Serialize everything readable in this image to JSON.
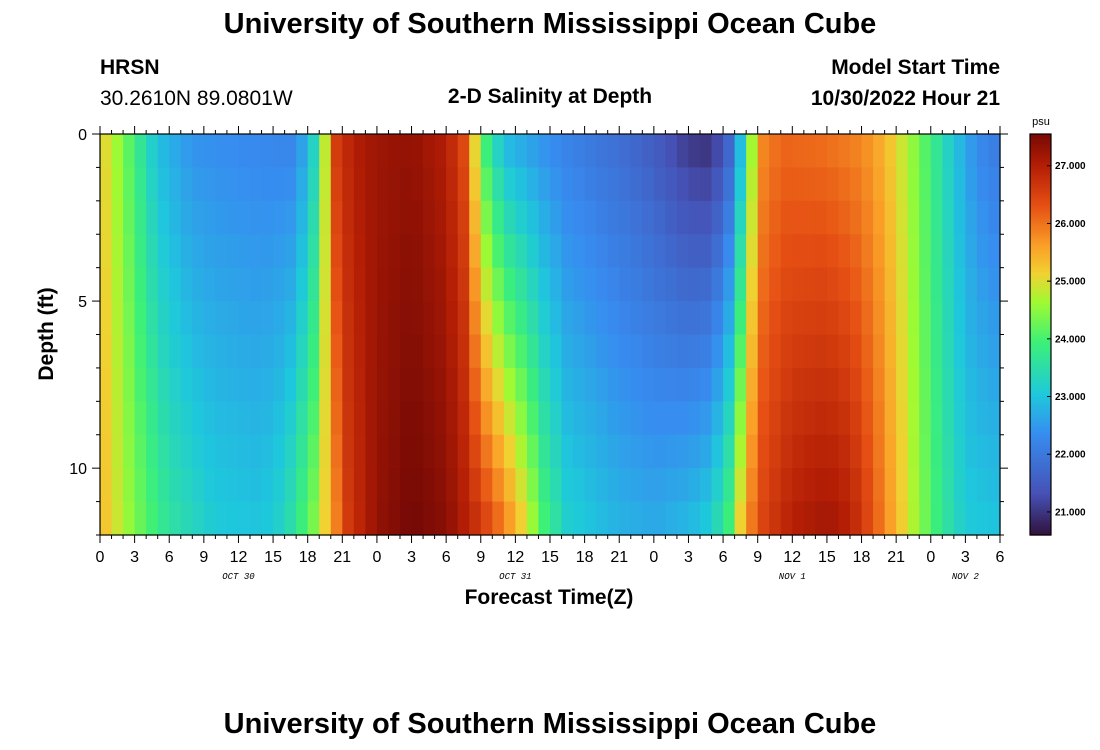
{
  "page": {
    "title": "University of Southern Mississippi Ocean Cube",
    "title_repeat": "University of Southern Mississippi Ocean Cube"
  },
  "header": {
    "station": "HRSN",
    "coords": "30.2610N  89.0801W",
    "plot_title": "2-D Salinity at Depth",
    "model_label": "Model Start Time",
    "model_time": "10/30/2022 Hour 21"
  },
  "chart_data": {
    "type": "heatmap",
    "title": "2-D Salinity at Depth",
    "xlabel": "Forecast Time(Z)",
    "ylabel": "Depth (ft)",
    "x_tick_labels": [
      "0",
      "3",
      "6",
      "9",
      "12",
      "15",
      "18",
      "21",
      "0",
      "3",
      "6",
      "9",
      "12",
      "15",
      "18",
      "21",
      "0",
      "3",
      "6",
      "9",
      "12",
      "15",
      "18",
      "21",
      "0",
      "3",
      "6"
    ],
    "x_hours": [
      0,
      3,
      6,
      9,
      12,
      15,
      18,
      21,
      24,
      27,
      30,
      33,
      36,
      39,
      42,
      45,
      48,
      51,
      54,
      57,
      60,
      63,
      66,
      69,
      72,
      75,
      78
    ],
    "date_labels": [
      {
        "text": "OCT 30",
        "hour": 12
      },
      {
        "text": "OCT 31",
        "hour": 36
      },
      {
        "text": "NOV 1",
        "hour": 60
      },
      {
        "text": "NOV 2",
        "hour": 75
      }
    ],
    "y_tick_labels": [
      "0",
      "5",
      "10"
    ],
    "y_ticks": [
      0,
      5,
      10
    ],
    "ylim": [
      0,
      12
    ],
    "xlim": [
      0,
      78
    ],
    "depth_levels": [
      0,
      1,
      2,
      3,
      4,
      5,
      6,
      7,
      8,
      9,
      10,
      11,
      12
    ],
    "salinity_keyframes_surface": [
      [
        0,
        25.2
      ],
      [
        1.5,
        24.6
      ],
      [
        3,
        23.9
      ],
      [
        5,
        22.9
      ],
      [
        8,
        22.4
      ],
      [
        12,
        22.3
      ],
      [
        17,
        22.2
      ],
      [
        18.5,
        23.2
      ],
      [
        19.5,
        24.8
      ],
      [
        20.5,
        26.6
      ],
      [
        22,
        27.0
      ],
      [
        24,
        27.2
      ],
      [
        27,
        27.3
      ],
      [
        30,
        27.0
      ],
      [
        31.5,
        26.4
      ],
      [
        32.5,
        25.0
      ],
      [
        33.5,
        23.8
      ],
      [
        35,
        22.8
      ],
      [
        40,
        22.2
      ],
      [
        45,
        21.8
      ],
      [
        48,
        21.5
      ],
      [
        51,
        21.0
      ],
      [
        53,
        20.9
      ],
      [
        54.5,
        21.6
      ],
      [
        55.5,
        22.8
      ],
      [
        56.5,
        24.6
      ],
      [
        57.5,
        25.8
      ],
      [
        59,
        26.1
      ],
      [
        63,
        26.0
      ],
      [
        66,
        25.8
      ],
      [
        68,
        25.4
      ],
      [
        70,
        24.7
      ],
      [
        72,
        23.9
      ],
      [
        74,
        23.0
      ],
      [
        76,
        22.3
      ],
      [
        78,
        22.0
      ]
    ],
    "salinity_keyframes_bottom": [
      [
        0,
        25.4
      ],
      [
        1.5,
        24.9
      ],
      [
        3,
        24.4
      ],
      [
        6,
        23.6
      ],
      [
        10,
        23.1
      ],
      [
        14,
        23.0
      ],
      [
        16,
        23.3
      ],
      [
        18.5,
        24.4
      ],
      [
        20,
        25.5
      ],
      [
        21.5,
        26.6
      ],
      [
        24,
        27.3
      ],
      [
        27,
        27.6
      ],
      [
        30,
        27.4
      ],
      [
        33,
        26.7
      ],
      [
        35,
        26.0
      ],
      [
        37,
        25.0
      ],
      [
        38.5,
        24.0
      ],
      [
        40.5,
        23.2
      ],
      [
        45,
        22.8
      ],
      [
        48,
        22.7
      ],
      [
        51,
        22.9
      ],
      [
        53,
        23.2
      ],
      [
        54.5,
        24.0
      ],
      [
        55.5,
        25.2
      ],
      [
        57,
        26.4
      ],
      [
        60,
        27.0
      ],
      [
        63,
        27.2
      ],
      [
        65,
        27.0
      ],
      [
        67,
        26.3
      ],
      [
        69,
        25.4
      ],
      [
        71,
        24.5
      ],
      [
        73,
        23.7
      ],
      [
        75,
        23.1
      ],
      [
        78,
        23.0
      ]
    ],
    "colorbar": {
      "unit": "psu",
      "min": 20.6,
      "max": 27.55,
      "tick_labels": [
        "21.000",
        "22.000",
        "23.000",
        "24.000",
        "25.000",
        "26.000",
        "27.000"
      ],
      "tick_values": [
        21,
        22,
        23,
        24,
        25,
        26,
        27
      ]
    },
    "colormap": "turbo"
  }
}
